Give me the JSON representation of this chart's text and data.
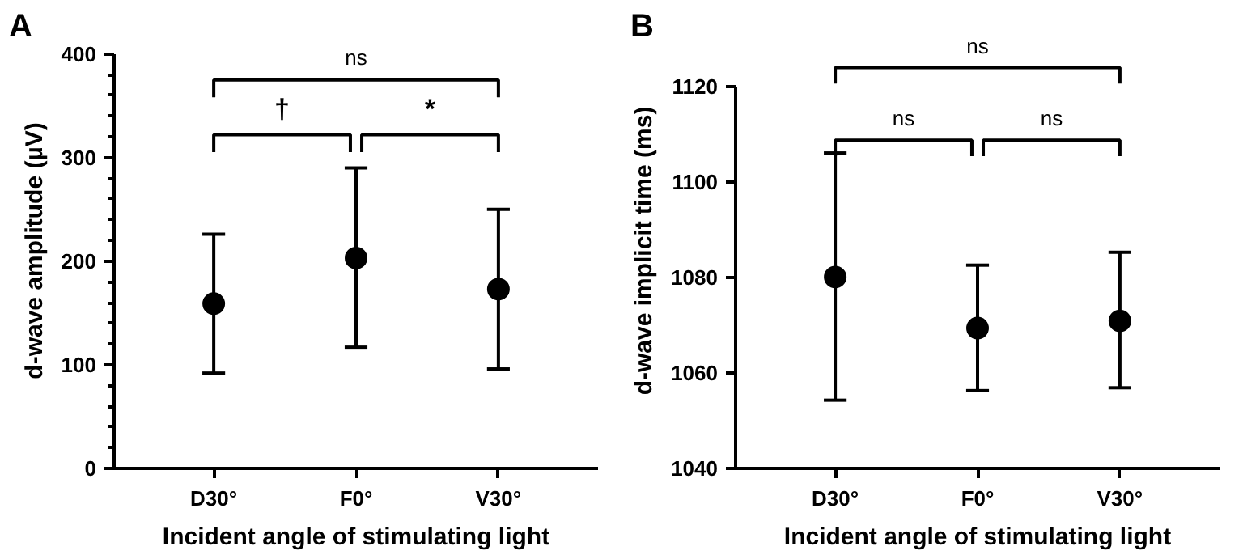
{
  "chart_data": [
    {
      "type": "scatter",
      "title": "A",
      "categories": [
        "D30°",
        "F0°",
        "V30°"
      ],
      "xlabel": "Incident angle of stimulating light",
      "ylabel": "d-wave amplitude (µV)",
      "series": [
        {
          "color": "#000000",
          "values": [
            159,
            203,
            173
          ],
          "errors": [
            [
              92,
              226
            ],
            [
              117,
              290
            ],
            [
              96,
              250
            ]
          ]
        }
      ],
      "ylim": [
        0,
        400
      ],
      "yticks": [
        0,
        100,
        200,
        300,
        400
      ],
      "marker": "circle",
      "grid": false,
      "annotations": [
        "†",
        "*",
        "ns"
      ]
    },
    {
      "type": "scatter",
      "title": "B",
      "categories": [
        "D30°",
        "F0°",
        "V30°"
      ],
      "xlabel": "Incident angle of stimulating light",
      "ylabel": "d-wave implicit time (ms)",
      "series": [
        {
          "color": "#000000",
          "values": [
            1080.1,
            1069.4,
            1070.9
          ],
          "errors": [
            [
              1054.3,
              1106.1
            ],
            [
              1056.3,
              1082.6
            ],
            [
              1056.9,
              1085.3
            ]
          ]
        }
      ],
      "ylim": [
        1040,
        1120
      ],
      "yticks": [
        1040,
        1060,
        1080,
        1100,
        1120
      ],
      "marker": "circle",
      "grid": false,
      "annotations": [
        "ns",
        "ns",
        "ns"
      ]
    }
  ]
}
